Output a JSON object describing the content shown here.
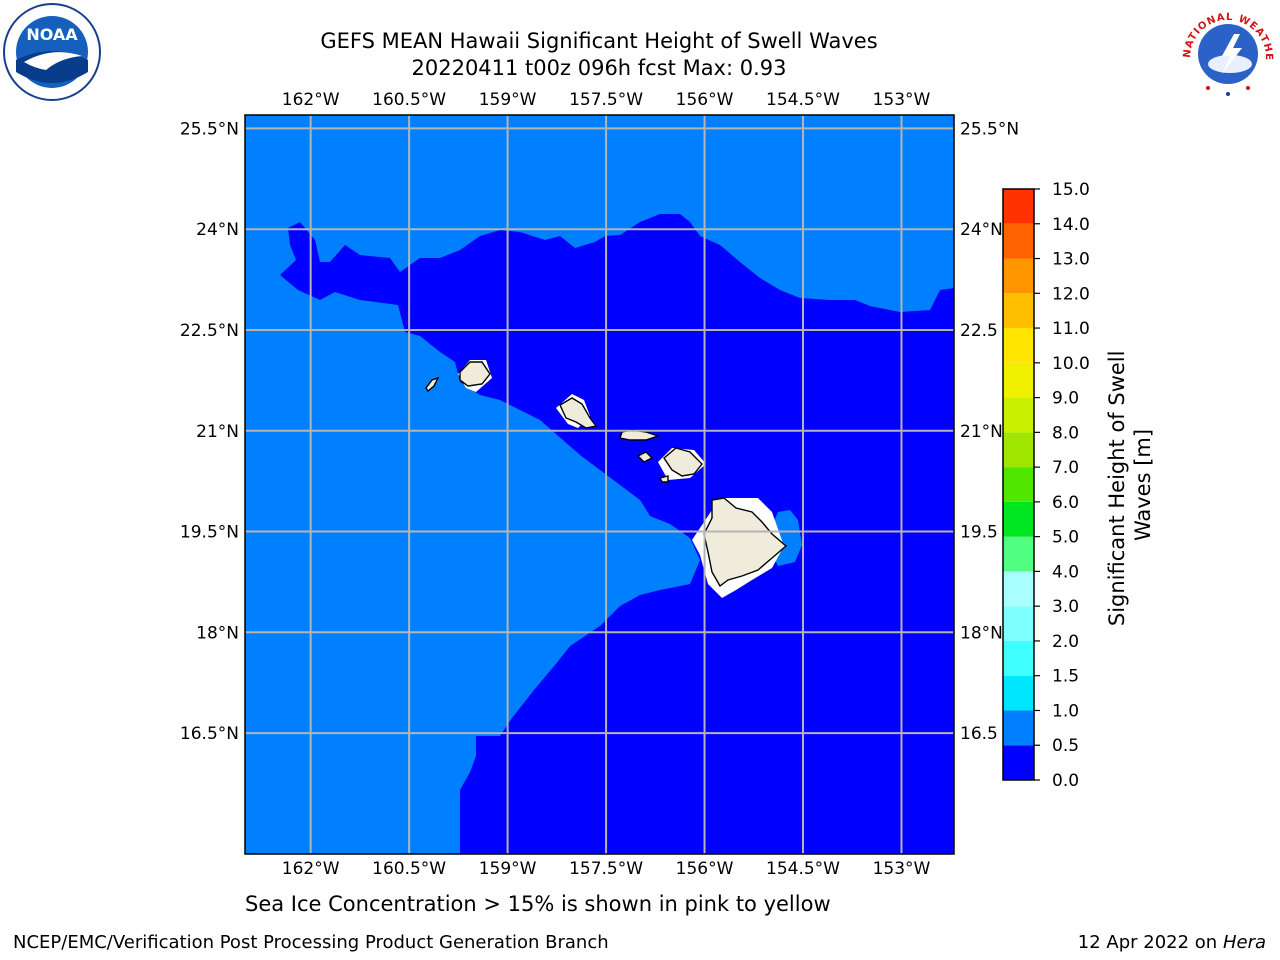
{
  "header": {
    "title_line1": "GEFS MEAN Hawaii Significant Height of Swell Waves",
    "title_line2": "20220411 t00z 096h fcst   Max: 0.93"
  },
  "logos": {
    "left": "noaa-logo",
    "right": "nws-logo",
    "left_text": "NOAA",
    "right_text": "NATIONAL WEATHER SERVICE"
  },
  "map": {
    "lon_range_deg_w": [
      163.0,
      152.2
    ],
    "lat_range_deg_n": [
      14.7,
      25.7
    ],
    "gridlines": true,
    "lon_ticks": [
      "162°W",
      "160.5°W",
      "159°W",
      "157.5°W",
      "156°W",
      "154.5°W",
      "153°W"
    ],
    "lat_ticks": [
      "25.5°N",
      "24°N",
      "22.5°N",
      "21°N",
      "19.5°N",
      "18°N",
      "16.5°N"
    ],
    "lon_tick_values": [
      162.0,
      160.5,
      159.0,
      157.5,
      156.0,
      154.5,
      153.0
    ],
    "lat_tick_values": [
      25.5,
      24.0,
      22.5,
      21.0,
      19.5,
      18.0,
      16.5
    ],
    "right_lat_ticks": [
      "25.5°N",
      "24°N",
      "22.5",
      "21°N",
      "19.5",
      "18°N",
      "16.5"
    ],
    "colors": {
      "band_0_0p5": "#0000ff",
      "band_0p5_1": "#0080ff",
      "land": "#efecdc",
      "grid": "#b4b4b4"
    }
  },
  "colorbar": {
    "label_line1": "Significant Height of Swell",
    "label_line2": "Waves [m]",
    "ticks": [
      "0.0",
      "0.5",
      "1.0",
      "1.5",
      "2.0",
      "3.0",
      "4.0",
      "5.0",
      "6.0",
      "7.0",
      "8.0",
      "9.0",
      "10.0",
      "11.0",
      "12.0",
      "13.0",
      "14.0",
      "15.0"
    ],
    "colors": [
      "#0000ff",
      "#0080ff",
      "#00e6ff",
      "#40ffff",
      "#80ffff",
      "#aaffff",
      "#50ff80",
      "#00e620",
      "#50e600",
      "#a0e600",
      "#c8f000",
      "#f0f000",
      "#ffe600",
      "#ffbe00",
      "#ff9600",
      "#ff6400",
      "#ff3200",
      "#ff0000"
    ]
  },
  "footer": {
    "sea_ice_note": "Sea Ice Concentration > 15% is shown in pink to yellow",
    "left_text": "NCEP/EMC/Verification Post Processing Product Generation Branch",
    "right_date": "12 Apr 2022 on",
    "right_machine": "Hera"
  }
}
